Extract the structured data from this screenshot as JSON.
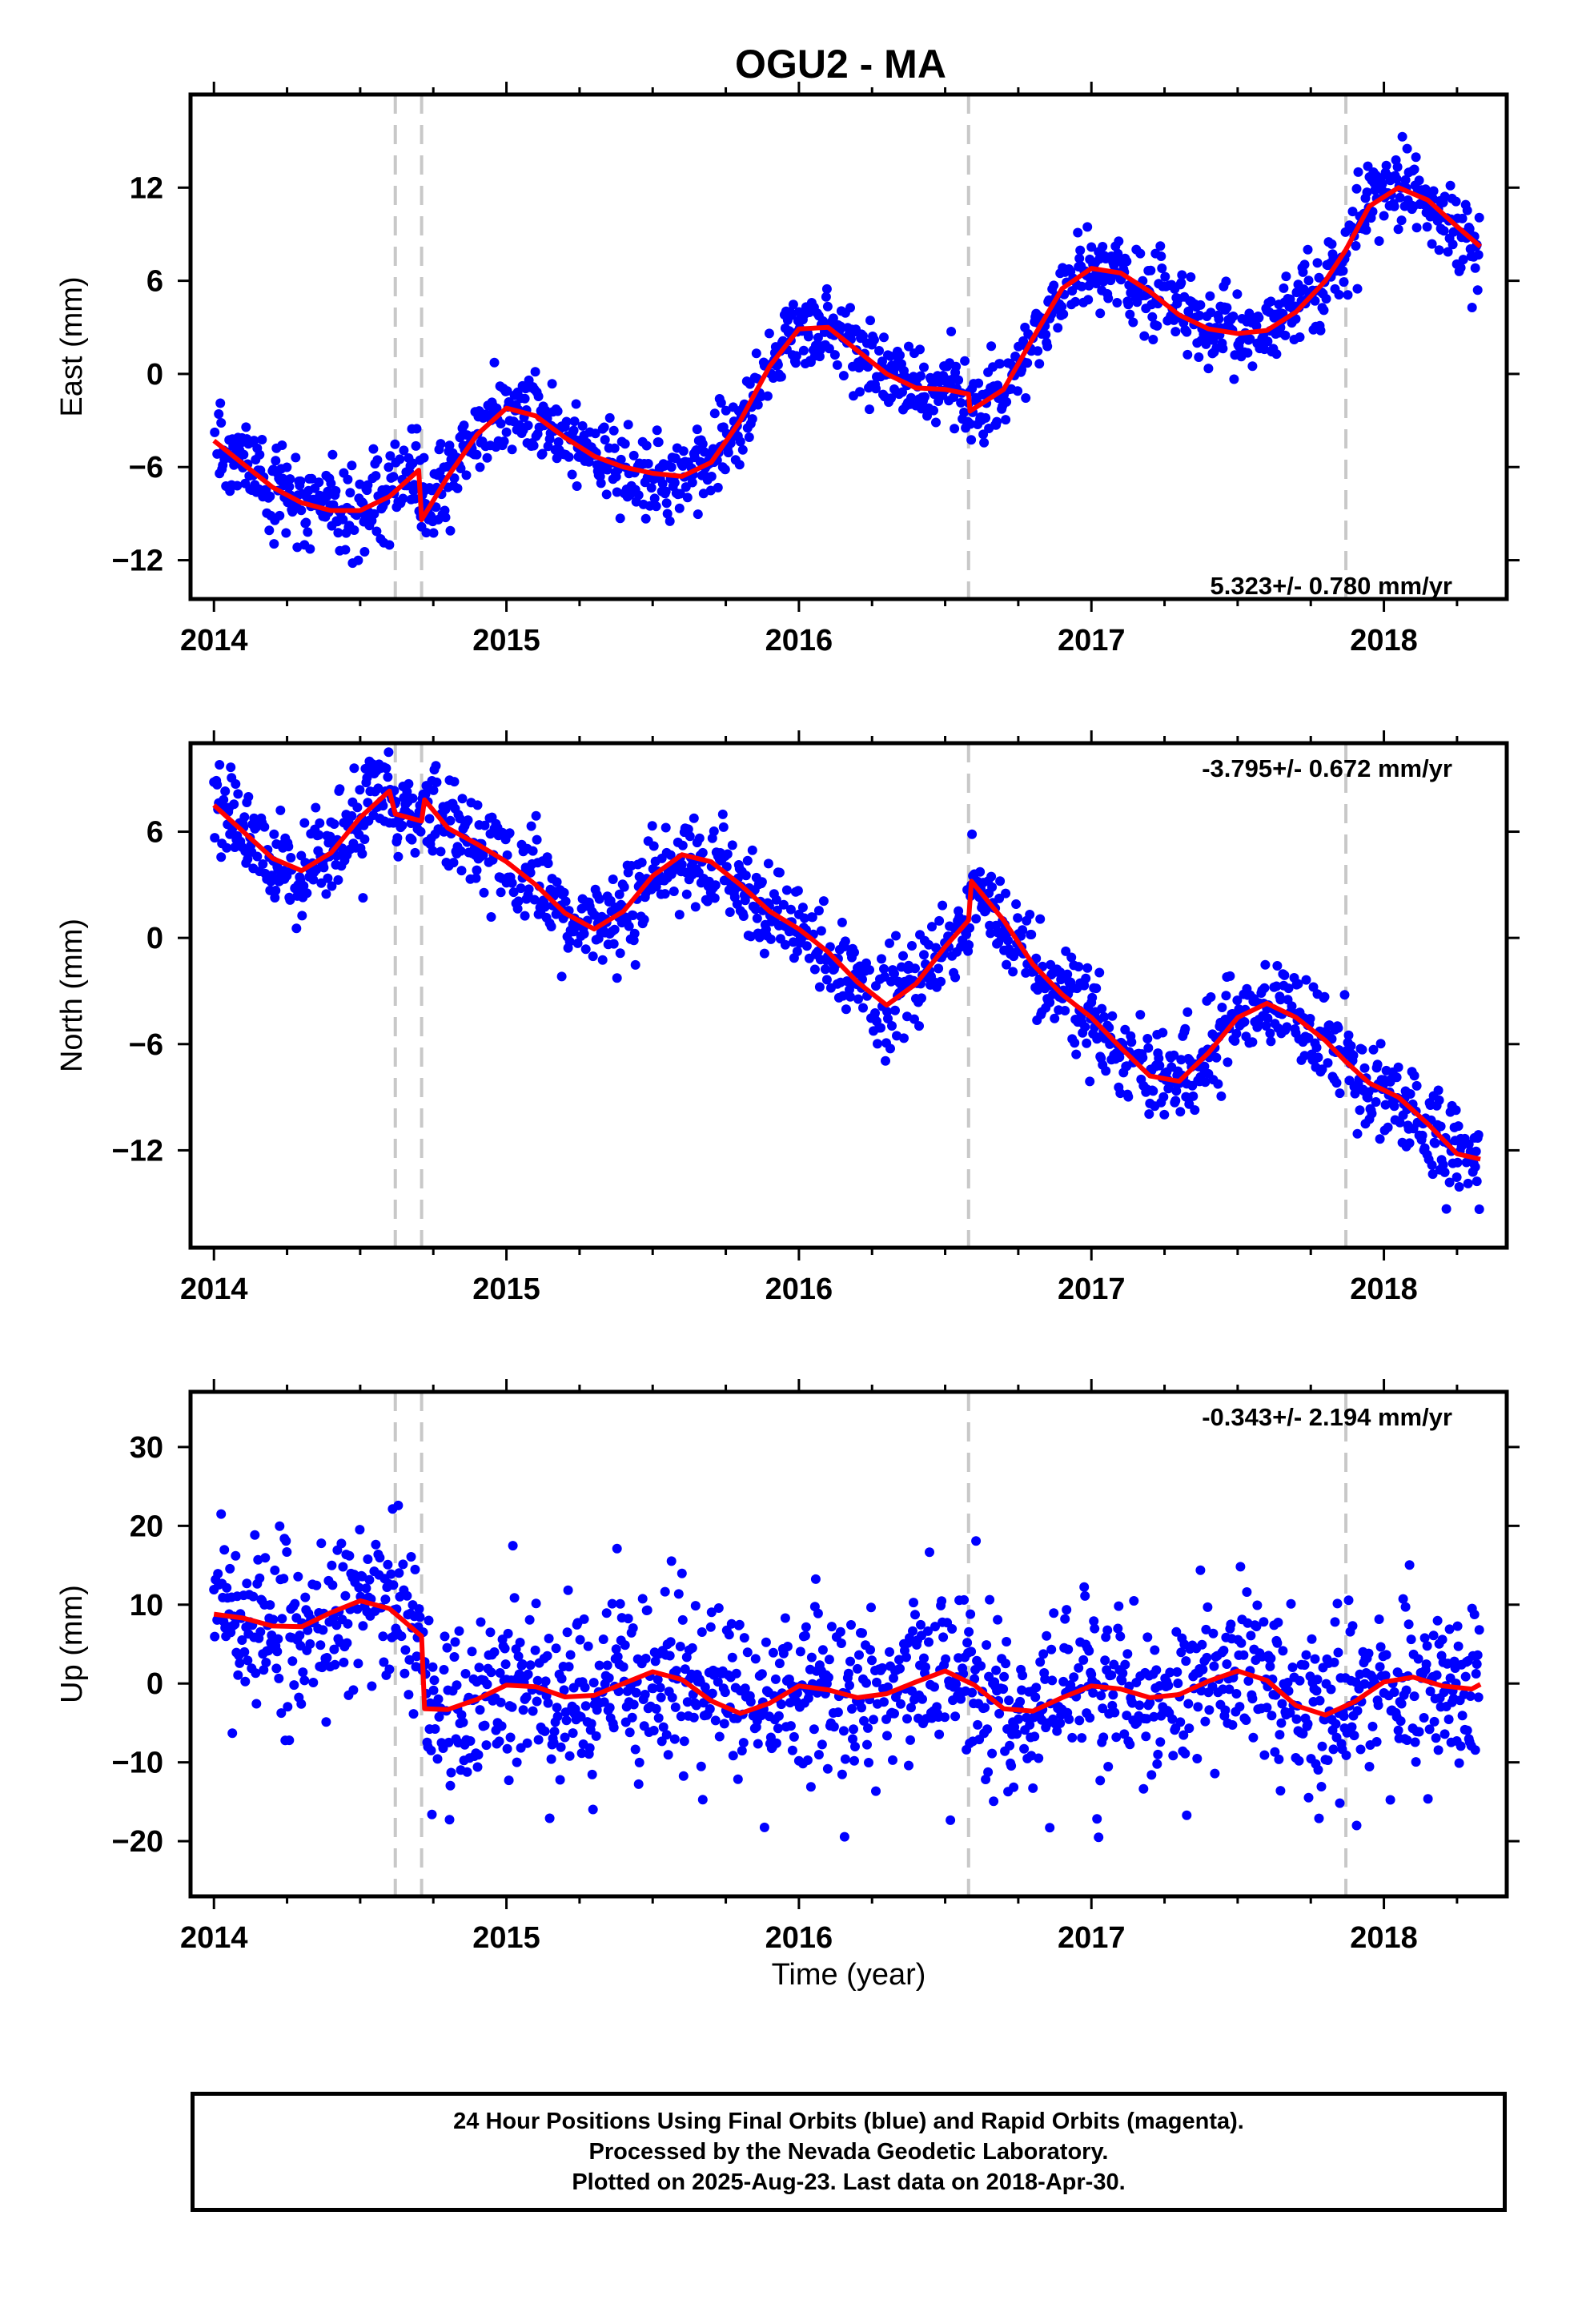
{
  "title": "OGU2 - MA",
  "x_axis_label": "Time (year)",
  "caption": {
    "line1": "24 Hour Positions Using Final Orbits (blue) and Rapid Orbits (magenta).",
    "line2": "Processed by the Nevada Geodetic Laboratory.",
    "line3": "Plotted on 2025-Aug-23. Last data on 2018-Apr-30."
  },
  "colors": {
    "final_orbits": "#0000ff",
    "model": "#ff0000",
    "event_lines": "#c8c8c8"
  },
  "chart_data": [
    {
      "type": "scatter",
      "panel": "east",
      "ylabel": "East (mm)",
      "rate_label": "5.323+/- 0.780 mm/yr",
      "xlim": [
        2013.92,
        2018.42
      ],
      "ylim": [
        -14.5,
        18
      ],
      "x_ticks": [
        2014,
        2015,
        2016,
        2017,
        2018
      ],
      "y_ticks": [
        -12,
        -6,
        0,
        6,
        12
      ],
      "event_lines": [
        2014.62,
        2014.71,
        2016.58,
        2017.87
      ],
      "data_range": [
        2014.0,
        2018.33
      ],
      "model": {
        "series_name": "",
        "points": [
          [
            2014.0,
            -4.3
          ],
          [
            2014.1,
            -5.8
          ],
          [
            2014.2,
            -7.3
          ],
          [
            2014.3,
            -8.3
          ],
          [
            2014.4,
            -8.8
          ],
          [
            2014.5,
            -8.8
          ],
          [
            2014.6,
            -7.9
          ],
          [
            2014.7,
            -6.2
          ],
          [
            2014.71,
            -9.4
          ],
          [
            2014.8,
            -6.6
          ],
          [
            2014.9,
            -3.9
          ],
          [
            2015.0,
            -2.2
          ],
          [
            2015.1,
            -2.7
          ],
          [
            2015.2,
            -4.1
          ],
          [
            2015.3,
            -5.3
          ],
          [
            2015.4,
            -6.0
          ],
          [
            2015.5,
            -6.4
          ],
          [
            2015.6,
            -6.6
          ],
          [
            2015.7,
            -5.7
          ],
          [
            2015.8,
            -3.0
          ],
          [
            2015.9,
            0.5
          ],
          [
            2016.0,
            2.9
          ],
          [
            2016.1,
            3.0
          ],
          [
            2016.2,
            1.5
          ],
          [
            2016.3,
            0.0
          ],
          [
            2016.4,
            -0.9
          ],
          [
            2016.5,
            -1.0
          ],
          [
            2016.58,
            -1.3
          ],
          [
            2016.585,
            -2.4
          ],
          [
            2016.7,
            -1.0
          ],
          [
            2016.8,
            2.3
          ],
          [
            2016.9,
            5.5
          ],
          [
            2017.0,
            6.8
          ],
          [
            2017.1,
            6.5
          ],
          [
            2017.2,
            5.3
          ],
          [
            2017.3,
            3.8
          ],
          [
            2017.4,
            2.9
          ],
          [
            2017.5,
            2.6
          ],
          [
            2017.6,
            2.8
          ],
          [
            2017.7,
            4.0
          ],
          [
            2017.8,
            6.0
          ],
          [
            2017.87,
            8.0
          ],
          [
            2017.95,
            10.8
          ],
          [
            2018.05,
            12.0
          ],
          [
            2018.15,
            11.2
          ],
          [
            2018.25,
            9.5
          ],
          [
            2018.33,
            8.2
          ]
        ]
      },
      "scatter": {
        "series_name": "",
        "scatter_sd": 1.3
      }
    },
    {
      "type": "scatter",
      "panel": "north",
      "ylabel": "North (mm)",
      "rate_label": "-3.795+/- 0.672 mm/yr",
      "xlim": [
        2013.92,
        2018.42
      ],
      "ylim": [
        -17.5,
        11
      ],
      "x_ticks": [
        2014,
        2015,
        2016,
        2017,
        2018
      ],
      "y_ticks": [
        -12,
        -6,
        0,
        6
      ],
      "event_lines": [
        2014.62,
        2014.71,
        2016.58,
        2017.87
      ],
      "data_range": [
        2014.0,
        2018.33
      ],
      "model": {
        "series_name": "",
        "points": [
          [
            2014.0,
            7.5
          ],
          [
            2014.1,
            6.0
          ],
          [
            2014.2,
            4.5
          ],
          [
            2014.3,
            3.8
          ],
          [
            2014.4,
            4.8
          ],
          [
            2014.5,
            6.8
          ],
          [
            2014.6,
            8.3
          ],
          [
            2014.62,
            7.0
          ],
          [
            2014.71,
            6.6
          ],
          [
            2014.72,
            7.8
          ],
          [
            2014.8,
            6.2
          ],
          [
            2014.9,
            5.3
          ],
          [
            2015.0,
            4.3
          ],
          [
            2015.1,
            3.0
          ],
          [
            2015.2,
            1.4
          ],
          [
            2015.3,
            0.5
          ],
          [
            2015.4,
            1.5
          ],
          [
            2015.5,
            3.5
          ],
          [
            2015.6,
            4.7
          ],
          [
            2015.7,
            4.3
          ],
          [
            2015.8,
            3.0
          ],
          [
            2015.9,
            1.5
          ],
          [
            2016.0,
            0.5
          ],
          [
            2016.1,
            -0.8
          ],
          [
            2016.2,
            -2.5
          ],
          [
            2016.3,
            -3.8
          ],
          [
            2016.4,
            -2.6
          ],
          [
            2016.5,
            -0.5
          ],
          [
            2016.58,
            1.0
          ],
          [
            2016.59,
            3.2
          ],
          [
            2016.7,
            1.0
          ],
          [
            2016.8,
            -1.5
          ],
          [
            2016.9,
            -3.2
          ],
          [
            2017.0,
            -4.5
          ],
          [
            2017.1,
            -6.2
          ],
          [
            2017.2,
            -7.8
          ],
          [
            2017.3,
            -8.1
          ],
          [
            2017.4,
            -6.5
          ],
          [
            2017.5,
            -4.5
          ],
          [
            2017.6,
            -3.7
          ],
          [
            2017.7,
            -4.5
          ],
          [
            2017.8,
            -5.8
          ],
          [
            2017.87,
            -7.0
          ],
          [
            2017.95,
            -8.2
          ],
          [
            2018.05,
            -9.0
          ],
          [
            2018.15,
            -10.5
          ],
          [
            2018.25,
            -12.2
          ],
          [
            2018.33,
            -12.5
          ]
        ]
      },
      "scatter": {
        "series_name": "",
        "scatter_sd": 1.3
      }
    },
    {
      "type": "scatter",
      "panel": "up",
      "ylabel": "Up (mm)",
      "rate_label": "-0.343+/- 2.194 mm/yr",
      "xlim": [
        2013.92,
        2018.42
      ],
      "ylim": [
        -27,
        37
      ],
      "x_ticks": [
        2014,
        2015,
        2016,
        2017,
        2018
      ],
      "y_ticks": [
        -20,
        -10,
        0,
        10,
        20,
        30
      ],
      "event_lines": [
        2014.62,
        2014.71,
        2016.58,
        2017.87
      ],
      "data_range": [
        2014.0,
        2018.33
      ],
      "model": {
        "series_name": "",
        "points": [
          [
            2014.0,
            8.8
          ],
          [
            2014.1,
            8.3
          ],
          [
            2014.2,
            7.3
          ],
          [
            2014.3,
            7.2
          ],
          [
            2014.4,
            9.0
          ],
          [
            2014.5,
            10.5
          ],
          [
            2014.6,
            9.5
          ],
          [
            2014.71,
            6.0
          ],
          [
            2014.72,
            -3.2
          ],
          [
            2014.8,
            -3.3
          ],
          [
            2014.9,
            -2.0
          ],
          [
            2015.0,
            -0.2
          ],
          [
            2015.1,
            -0.4
          ],
          [
            2015.2,
            -1.7
          ],
          [
            2015.3,
            -1.5
          ],
          [
            2015.4,
            0.0
          ],
          [
            2015.5,
            1.5
          ],
          [
            2015.6,
            0.5
          ],
          [
            2015.7,
            -2.2
          ],
          [
            2015.8,
            -3.8
          ],
          [
            2015.9,
            -2.5
          ],
          [
            2016.0,
            -0.3
          ],
          [
            2016.1,
            -0.8
          ],
          [
            2016.2,
            -1.8
          ],
          [
            2016.3,
            -1.3
          ],
          [
            2016.4,
            0.2
          ],
          [
            2016.5,
            1.6
          ],
          [
            2016.6,
            -0.2
          ],
          [
            2016.7,
            -3.2
          ],
          [
            2016.8,
            -3.5
          ],
          [
            2016.9,
            -1.8
          ],
          [
            2017.0,
            -0.3
          ],
          [
            2017.1,
            -0.7
          ],
          [
            2017.2,
            -1.8
          ],
          [
            2017.3,
            -1.4
          ],
          [
            2017.4,
            0.3
          ],
          [
            2017.5,
            1.6
          ],
          [
            2017.6,
            0.4
          ],
          [
            2017.7,
            -2.8
          ],
          [
            2017.8,
            -4.0
          ],
          [
            2017.9,
            -2.3
          ],
          [
            2018.0,
            0.2
          ],
          [
            2018.1,
            0.8
          ],
          [
            2018.2,
            -0.3
          ],
          [
            2018.3,
            -0.7
          ],
          [
            2018.33,
            -0.1
          ]
        ]
      },
      "scatter": {
        "series_name": "",
        "scatter_sd": 5.5
      }
    }
  ]
}
